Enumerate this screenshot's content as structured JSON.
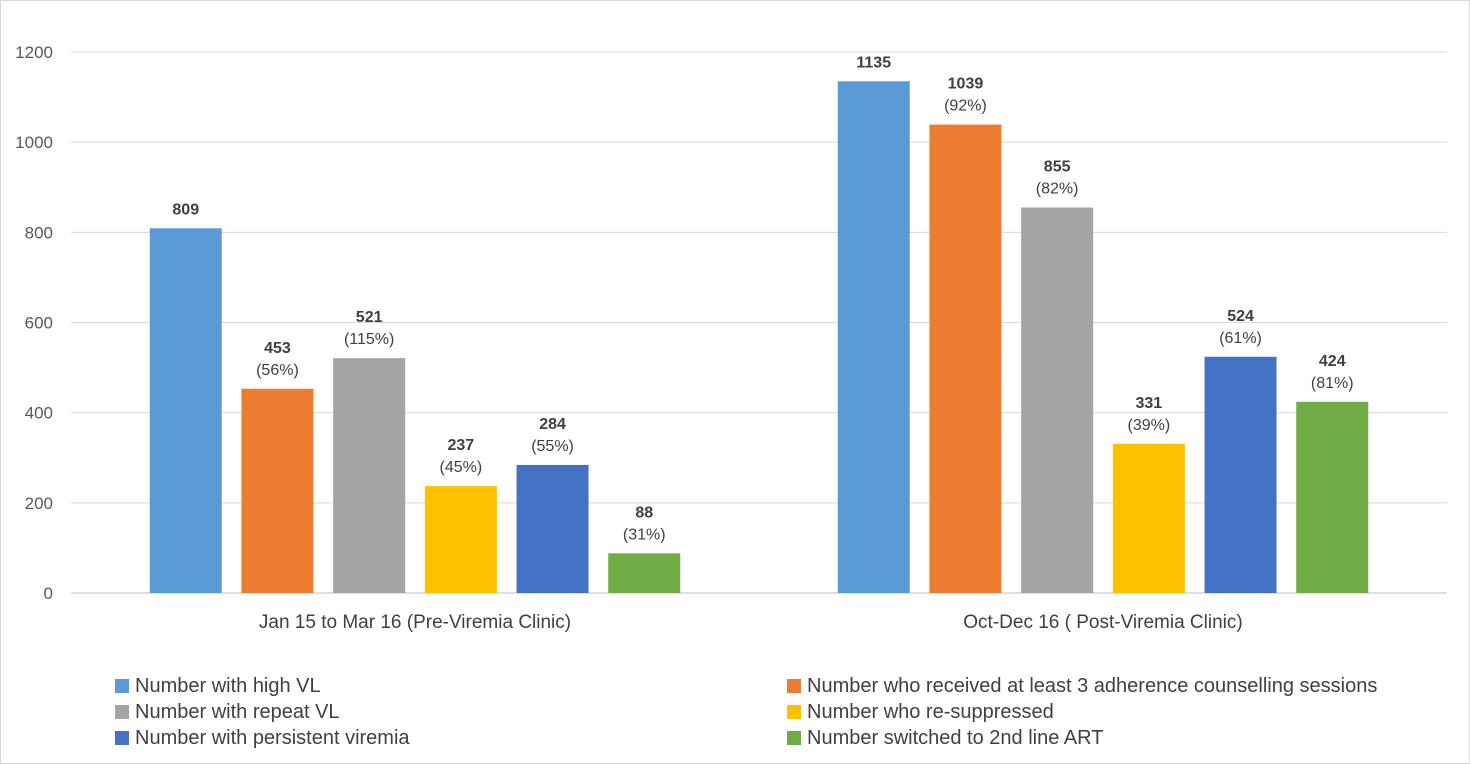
{
  "chart_data": {
    "type": "bar",
    "title": "",
    "xlabel": "",
    "ylabel": "",
    "ylim": [
      0,
      1200
    ],
    "yticks": [
      0,
      200,
      400,
      600,
      800,
      1000,
      1200
    ],
    "grid": true,
    "legend_position": "bottom",
    "categories": [
      "Jan 15 to Mar 16 (Pre-Viremia Clinic)",
      "Oct-Dec 16 ( Post-Viremia Clinic)"
    ],
    "series": [
      {
        "name": "Number with high VL",
        "color": "#5b9bd5",
        "values": [
          809,
          1135
        ],
        "labels": [
          [
            "809"
          ],
          [
            "1135"
          ]
        ]
      },
      {
        "name": "Number who received at least 3 adherence counselling sessions",
        "color": "#ed7d31",
        "values": [
          453,
          1039
        ],
        "labels": [
          [
            "453",
            "(56%)"
          ],
          [
            "1039",
            "(92%)"
          ]
        ]
      },
      {
        "name": "Number with repeat VL",
        "color": "#a5a5a5",
        "values": [
          521,
          855
        ],
        "labels": [
          [
            "521",
            "(115%)"
          ],
          [
            "855",
            "(82%)"
          ]
        ]
      },
      {
        "name": "Number who re-suppressed",
        "color": "#ffc000",
        "values": [
          237,
          331
        ],
        "labels": [
          [
            "237",
            "(45%)"
          ],
          [
            "331",
            "(39%)"
          ]
        ]
      },
      {
        "name": "Number with persistent viremia",
        "color": "#4472c4",
        "values": [
          284,
          524
        ],
        "labels": [
          [
            "284",
            "(55%)"
          ],
          [
            "524",
            "(61%)"
          ]
        ]
      },
      {
        "name": "Number switched to 2nd line ART",
        "color": "#70ad47",
        "values": [
          88,
          424
        ],
        "labels": [
          [
            "88",
            "(31%)"
          ],
          [
            "424",
            "(81%)"
          ]
        ]
      }
    ]
  }
}
